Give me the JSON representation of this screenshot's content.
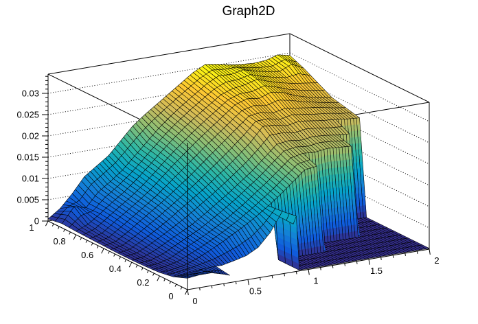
{
  "title": "Graph2D",
  "style": {
    "background": "#ffffff",
    "axis_color": "#000000",
    "mesh_color": "#000000",
    "grid_line_style": "dotted"
  },
  "axes": {
    "x": {
      "range": [
        0,
        2
      ],
      "tick_labels": [
        "0",
        "0.5",
        "1",
        "1.5",
        "2"
      ],
      "tick_values": [
        0,
        0.5,
        1,
        1.5,
        2
      ],
      "minor_step": 0.1
    },
    "y": {
      "range": [
        0,
        1
      ],
      "tick_labels": [
        "1",
        "0.8",
        "0.6",
        "0.4",
        "0.2",
        "0"
      ],
      "tick_values": [
        1,
        0.8,
        0.6,
        0.4,
        0.2,
        0
      ],
      "minor_step": 0.04
    },
    "z": {
      "range": [
        0,
        0.0345
      ],
      "tick_labels": [
        "0",
        "0.005",
        "0.01",
        "0.015",
        "0.02",
        "0.025",
        "0.03"
      ],
      "tick_values": [
        0,
        0.005,
        0.01,
        0.015,
        0.02,
        0.025,
        0.03
      ],
      "minor_step": 0.001,
      "grid_levels": [
        0.005,
        0.01,
        0.015,
        0.02,
        0.025,
        0.03
      ]
    }
  },
  "chart_data": {
    "type": "surface",
    "title": "Graph2D",
    "x_range": [
      0,
      2
    ],
    "y_range": [
      0,
      1
    ],
    "z_range": [
      0,
      0.0345
    ],
    "x_values": [
      0,
      0.1,
      0.2,
      0.3,
      0.4,
      0.5,
      0.6,
      0.7,
      0.8,
      0.9,
      1.0,
      1.1,
      1.2,
      1.3,
      1.4,
      1.5,
      1.6,
      1.7,
      1.8,
      1.9,
      2.0
    ],
    "y_values": [
      0,
      0.1,
      0.2,
      0.3,
      0.4,
      0.5,
      0.6,
      0.7,
      0.8,
      0.9,
      1.0
    ],
    "z_unit": 0.001,
    "z_grid_rows_front_to_back": [
      [
        2.7,
        3.0,
        3.0,
        2.2,
        1.2,
        1.2,
        1.5,
        2.5,
        6.0,
        13.0,
        0.2,
        0.2,
        0.2,
        0.2,
        0.2,
        0.2,
        0.2,
        0.2,
        0.2,
        0.2,
        0.2
      ],
      [
        1.4,
        1.6,
        2.0,
        2.2,
        2.2,
        2.8,
        3.5,
        5.0,
        8.0,
        12.5,
        0.2,
        0.2,
        0.2,
        0.2,
        0.2,
        0.2,
        0.2,
        0.2,
        0.2,
        0.2,
        0.2
      ],
      [
        0.8,
        1.0,
        1.5,
        2.5,
        3.8,
        5.2,
        6.8,
        8.4,
        10.2,
        12.2,
        14.4,
        16.8,
        19.2,
        19.6,
        0.2,
        0.2,
        0.2,
        0.2,
        0.2,
        0.2,
        0.2
      ],
      [
        0.6,
        0.8,
        1.6,
        3.0,
        4.4,
        5.8,
        7.4,
        9.2,
        11.2,
        13.4,
        15.6,
        18.0,
        20.4,
        21.0,
        20.8,
        21.2,
        21.0,
        20.8,
        0.2,
        0.2,
        0.2
      ],
      [
        0.5,
        0.8,
        2.0,
        3.5,
        5.0,
        6.5,
        8.4,
        10.4,
        12.4,
        14.6,
        16.8,
        19.4,
        22.0,
        22.4,
        22.0,
        22.4,
        22.2,
        21.8,
        21.6,
        0.2,
        0.2
      ],
      [
        0.5,
        1.0,
        2.5,
        4.2,
        6.0,
        8.0,
        10.0,
        12.0,
        14.2,
        16.4,
        18.8,
        21.4,
        24.6,
        24.4,
        23.8,
        24.4,
        24.0,
        23.6,
        23.4,
        23.0,
        22.8
      ],
      [
        0.6,
        1.2,
        3.0,
        5.0,
        7.0,
        9.0,
        11.2,
        13.4,
        15.8,
        18.2,
        20.6,
        23.0,
        25.4,
        25.8,
        25.2,
        25.8,
        25.4,
        25.0,
        24.6,
        24.0,
        23.6
      ],
      [
        0.7,
        1.5,
        3.6,
        5.6,
        7.6,
        9.8,
        12.4,
        15.0,
        17.4,
        19.8,
        22.0,
        24.2,
        26.4,
        27.4,
        27.0,
        28.0,
        27.4,
        26.2,
        25.4,
        24.8,
        24.4
      ],
      [
        0.8,
        2.0,
        4.0,
        6.2,
        8.2,
        10.6,
        13.2,
        16.0,
        18.6,
        21.0,
        23.2,
        25.2,
        27.2,
        28.2,
        28.6,
        29.4,
        28.4,
        27.6,
        27.0,
        26.6,
        26.2
      ],
      [
        1.0,
        4.5,
        3.8,
        7.0,
        9.0,
        11.2,
        14.0,
        16.8,
        19.6,
        22.0,
        24.2,
        26.2,
        28.2,
        29.6,
        29.4,
        30.0,
        29.2,
        28.6,
        28.2,
        29.4,
        28.0
      ],
      [
        0.5,
        2.5,
        5.5,
        9.0,
        11.0,
        13.0,
        16.0,
        19.0,
        21.2,
        23.2,
        25.2,
        27.2,
        29.2,
        30.6,
        30.2,
        29.6,
        29.2,
        29.0,
        29.2,
        30.0,
        29.4
      ]
    ],
    "no_data_region": {
      "x_min": 0.35,
      "x_max": 0.88,
      "y_max": 0.09
    },
    "palette": [
      "#352A87",
      "#0F5CDD",
      "#1481D6",
      "#06A4CA",
      "#2EB7A4",
      "#87BF77",
      "#D1BB59",
      "#FEC832",
      "#F9FB0E"
    ]
  }
}
